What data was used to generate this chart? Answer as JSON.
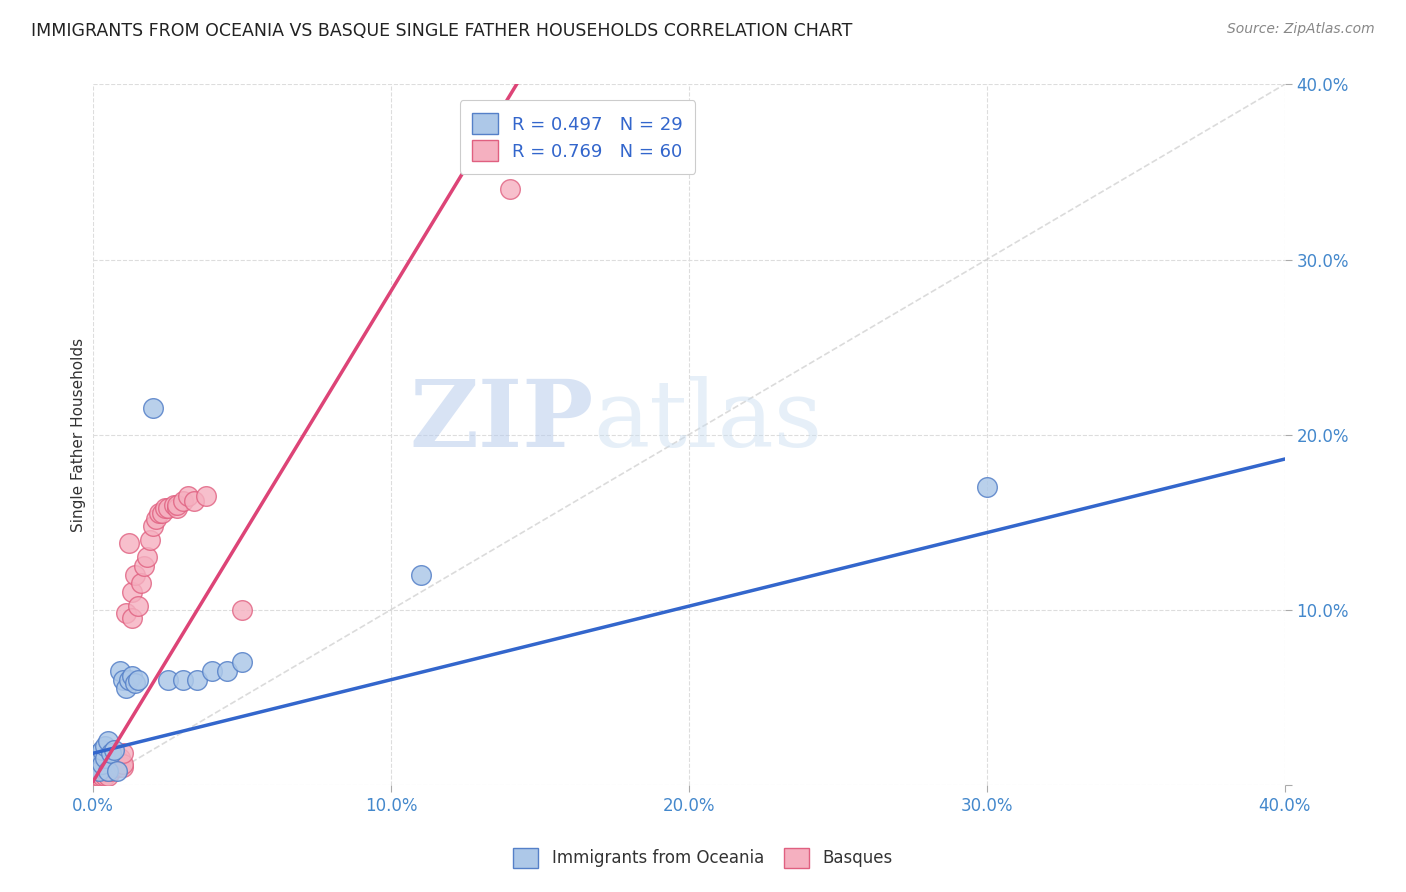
{
  "title": "IMMIGRANTS FROM OCEANIA VS BASQUE SINGLE FATHER HOUSEHOLDS CORRELATION CHART",
  "source": "Source: ZipAtlas.com",
  "ylabel": "Single Father Households",
  "xlim": [
    0.0,
    0.4
  ],
  "ylim": [
    0.0,
    0.4
  ],
  "xticks": [
    0.0,
    0.1,
    0.2,
    0.3,
    0.4
  ],
  "yticks": [
    0.0,
    0.1,
    0.2,
    0.3,
    0.4
  ],
  "xtick_labels": [
    "0.0%",
    "10.0%",
    "20.0%",
    "30.0%",
    "40.0%"
  ],
  "ytick_labels": [
    "",
    "10.0%",
    "20.0%",
    "30.0%",
    "40.0%"
  ],
  "blue_R": 0.497,
  "blue_N": 29,
  "pink_R": 0.769,
  "pink_N": 60,
  "blue_color": "#adc8e8",
  "pink_color": "#f5b0c0",
  "blue_edge_color": "#5580c8",
  "pink_edge_color": "#e06080",
  "blue_line_color": "#3366cc",
  "pink_line_color": "#dd4477",
  "diag_line_color": "#cccccc",
  "watermark_zip": "ZIP",
  "watermark_atlas": "atlas",
  "legend_blue_label": "R = 0.497   N = 29",
  "legend_pink_label": "R = 0.769   N = 60",
  "blue_line_slope": 0.42,
  "blue_line_intercept": 0.018,
  "pink_line_slope": 2.8,
  "pink_line_intercept": 0.002,
  "blue_points_x": [
    0.001,
    0.001,
    0.002,
    0.002,
    0.003,
    0.003,
    0.004,
    0.004,
    0.005,
    0.005,
    0.006,
    0.007,
    0.008,
    0.009,
    0.01,
    0.011,
    0.012,
    0.013,
    0.014,
    0.015,
    0.02,
    0.025,
    0.03,
    0.035,
    0.04,
    0.045,
    0.05,
    0.3,
    0.11
  ],
  "blue_points_y": [
    0.01,
    0.015,
    0.008,
    0.018,
    0.012,
    0.02,
    0.015,
    0.022,
    0.025,
    0.008,
    0.018,
    0.02,
    0.008,
    0.065,
    0.06,
    0.055,
    0.06,
    0.062,
    0.058,
    0.06,
    0.215,
    0.06,
    0.06,
    0.06,
    0.065,
    0.065,
    0.07,
    0.17,
    0.12
  ],
  "pink_points_x": [
    0.001,
    0.001,
    0.001,
    0.001,
    0.001,
    0.002,
    0.002,
    0.002,
    0.002,
    0.003,
    0.003,
    0.003,
    0.004,
    0.004,
    0.004,
    0.004,
    0.005,
    0.005,
    0.005,
    0.005,
    0.006,
    0.006,
    0.006,
    0.006,
    0.007,
    0.007,
    0.007,
    0.007,
    0.008,
    0.008,
    0.009,
    0.009,
    0.01,
    0.01,
    0.01,
    0.011,
    0.012,
    0.013,
    0.013,
    0.014,
    0.015,
    0.016,
    0.017,
    0.018,
    0.019,
    0.02,
    0.021,
    0.022,
    0.023,
    0.024,
    0.025,
    0.027,
    0.028,
    0.028,
    0.03,
    0.032,
    0.034,
    0.038,
    0.14,
    0.05
  ],
  "pink_points_y": [
    0.005,
    0.007,
    0.01,
    0.012,
    0.015,
    0.005,
    0.008,
    0.01,
    0.012,
    0.005,
    0.008,
    0.012,
    0.005,
    0.008,
    0.01,
    0.015,
    0.005,
    0.008,
    0.01,
    0.015,
    0.008,
    0.01,
    0.012,
    0.015,
    0.01,
    0.012,
    0.015,
    0.018,
    0.01,
    0.015,
    0.01,
    0.015,
    0.01,
    0.012,
    0.018,
    0.098,
    0.138,
    0.095,
    0.11,
    0.12,
    0.102,
    0.115,
    0.125,
    0.13,
    0.14,
    0.148,
    0.152,
    0.155,
    0.155,
    0.158,
    0.158,
    0.16,
    0.158,
    0.16,
    0.162,
    0.165,
    0.162,
    0.165,
    0.34,
    0.1
  ]
}
